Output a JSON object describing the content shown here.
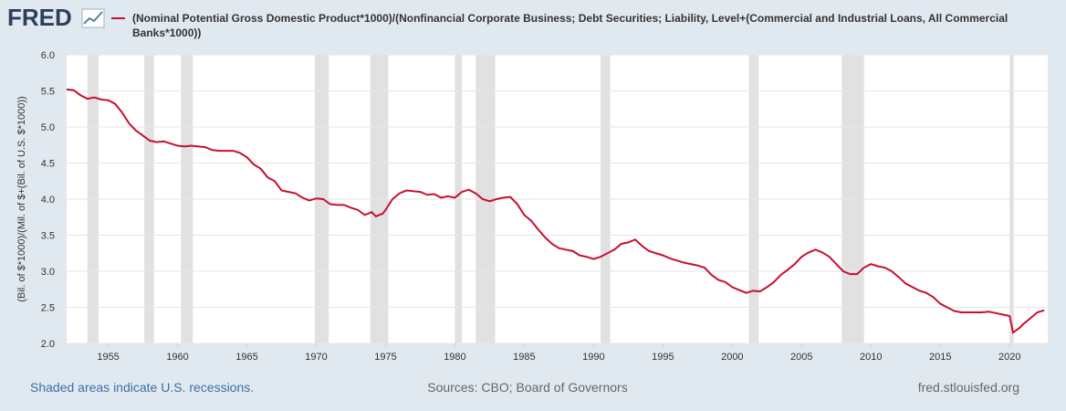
{
  "chart_data": {
    "type": "line",
    "logo": "FRED",
    "title": "(Nominal Potential Gross Domestic Product*1000)/(Nonfinancial Corporate Business; Debt Securities; Liability, Level+(Commercial and Industrial Loans, All Commercial Banks*1000))",
    "y_label": "(Bil. of $*1000)/(Mil. of $+(Bil. of U.S. $*1000))",
    "note": "Shaded areas indicate U.S. recessions.",
    "source": "Sources: CBO; Board of Governors",
    "site": "fred.stlouisfed.org",
    "xlim": [
      1952,
      2022.75
    ],
    "xticks": [
      1955,
      1960,
      1965,
      1970,
      1975,
      1980,
      1985,
      1990,
      1995,
      2000,
      2005,
      2010,
      2015,
      2020
    ],
    "ylim": [
      2.0,
      6.0
    ],
    "yticks": [
      {
        "value": 2,
        "label": "2.0"
      },
      2.5,
      {
        "value": 3,
        "label": "3.0"
      },
      3.5,
      {
        "value": 4,
        "label": "4.0"
      },
      4.5,
      {
        "value": 5,
        "label": "5.0"
      },
      5.5,
      {
        "value": 6,
        "label": "6.0"
      }
    ],
    "grid": true,
    "recession_color": "#e1e1e1",
    "recessions": [
      [
        1953.5,
        1954.3
      ],
      [
        1957.6,
        1958.3
      ],
      [
        1960.25,
        1961.1
      ],
      [
        1969.9,
        1970.9
      ],
      [
        1973.9,
        1975.2
      ],
      [
        1980.0,
        1980.5
      ],
      [
        1981.5,
        1982.9
      ],
      [
        1990.5,
        1991.2
      ],
      [
        2001.2,
        2001.9
      ],
      [
        2007.9,
        2009.5
      ],
      [
        2020.0,
        2020.3
      ]
    ],
    "x": [
      1952,
      1952.5,
      1953,
      1953.5,
      1954,
      1954.5,
      1955,
      1955.5,
      1956,
      1956.5,
      1957,
      1957.5,
      1958,
      1958.5,
      1959,
      1959.5,
      1960,
      1960.5,
      1961,
      1961.5,
      1962,
      1962.5,
      1963,
      1964,
      1964.5,
      1965,
      1965.5,
      1966,
      1966.5,
      1967,
      1967.5,
      1968,
      1968.5,
      1969,
      1969.5,
      1970,
      1970.5,
      1971,
      1971.5,
      1972,
      1972.5,
      1973,
      1973.5,
      1974,
      1974.3,
      1974.8,
      1975,
      1975.5,
      1976,
      1976.5,
      1977,
      1977.5,
      1978,
      1978.5,
      1979,
      1979.5,
      1980,
      1980.5,
      1981,
      1981.5,
      1982,
      1982.5,
      1983,
      1983.5,
      1984,
      1984.5,
      1985,
      1985.5,
      1986,
      1986.5,
      1987,
      1987.5,
      1988,
      1988.5,
      1989,
      1989.5,
      1990,
      1990.5,
      1991,
      1991.5,
      1992,
      1992.5,
      1993,
      1993.5,
      1994,
      1994.5,
      1995,
      1995.5,
      1996,
      1996.5,
      1997,
      1997.5,
      1998,
      1998.5,
      1999,
      1999.5,
      2000,
      2000.5,
      2001,
      2001.5,
      2002,
      2002.5,
      2003,
      2003.5,
      2004,
      2004.5,
      2005,
      2005.5,
      2006,
      2006.5,
      2007,
      2007.5,
      2008,
      2008.5,
      2009,
      2009.5,
      2010,
      2010.5,
      2011,
      2011.5,
      2012,
      2012.5,
      2013,
      2013.5,
      2014,
      2014.5,
      2015,
      2015.5,
      2016,
      2016.5,
      2017,
      2018,
      2018.5,
      2019,
      2019.5,
      2020,
      2020.25,
      2020.75,
      2021,
      2021.5,
      2022,
      2022.5
    ],
    "series": [
      {
        "color": "#c8102e",
        "values": [
          5.52,
          5.51,
          5.44,
          5.39,
          5.41,
          5.38,
          5.37,
          5.32,
          5.2,
          5.05,
          4.95,
          4.88,
          4.81,
          4.79,
          4.8,
          4.77,
          4.74,
          4.73,
          4.74,
          4.73,
          4.72,
          4.68,
          4.67,
          4.67,
          4.64,
          4.58,
          4.48,
          4.42,
          4.3,
          4.25,
          4.12,
          4.1,
          4.08,
          4.02,
          3.98,
          4.01,
          4.0,
          3.93,
          3.92,
          3.92,
          3.88,
          3.85,
          3.78,
          3.82,
          3.76,
          3.8,
          3.85,
          4.0,
          4.08,
          4.12,
          4.11,
          4.1,
          4.06,
          4.07,
          4.02,
          4.04,
          4.02,
          4.1,
          4.13,
          4.08,
          4.0,
          3.97,
          4.0,
          4.02,
          4.03,
          3.93,
          3.78,
          3.7,
          3.58,
          3.47,
          3.38,
          3.32,
          3.3,
          3.28,
          3.22,
          3.2,
          3.17,
          3.2,
          3.25,
          3.3,
          3.38,
          3.4,
          3.44,
          3.35,
          3.28,
          3.25,
          3.22,
          3.18,
          3.15,
          3.12,
          3.1,
          3.08,
          3.05,
          2.95,
          2.88,
          2.85,
          2.78,
          2.74,
          2.7,
          2.73,
          2.72,
          2.78,
          2.85,
          2.95,
          3.02,
          3.1,
          3.2,
          3.26,
          3.3,
          3.26,
          3.2,
          3.1,
          3.0,
          2.96,
          2.96,
          3.05,
          3.1,
          3.07,
          3.05,
          3.0,
          2.92,
          2.83,
          2.78,
          2.73,
          2.7,
          2.64,
          2.55,
          2.5,
          2.45,
          2.43,
          2.43,
          2.43,
          2.44,
          2.42,
          2.4,
          2.38,
          2.15,
          2.22,
          2.27,
          2.35,
          2.43,
          2.46
        ]
      }
    ]
  }
}
